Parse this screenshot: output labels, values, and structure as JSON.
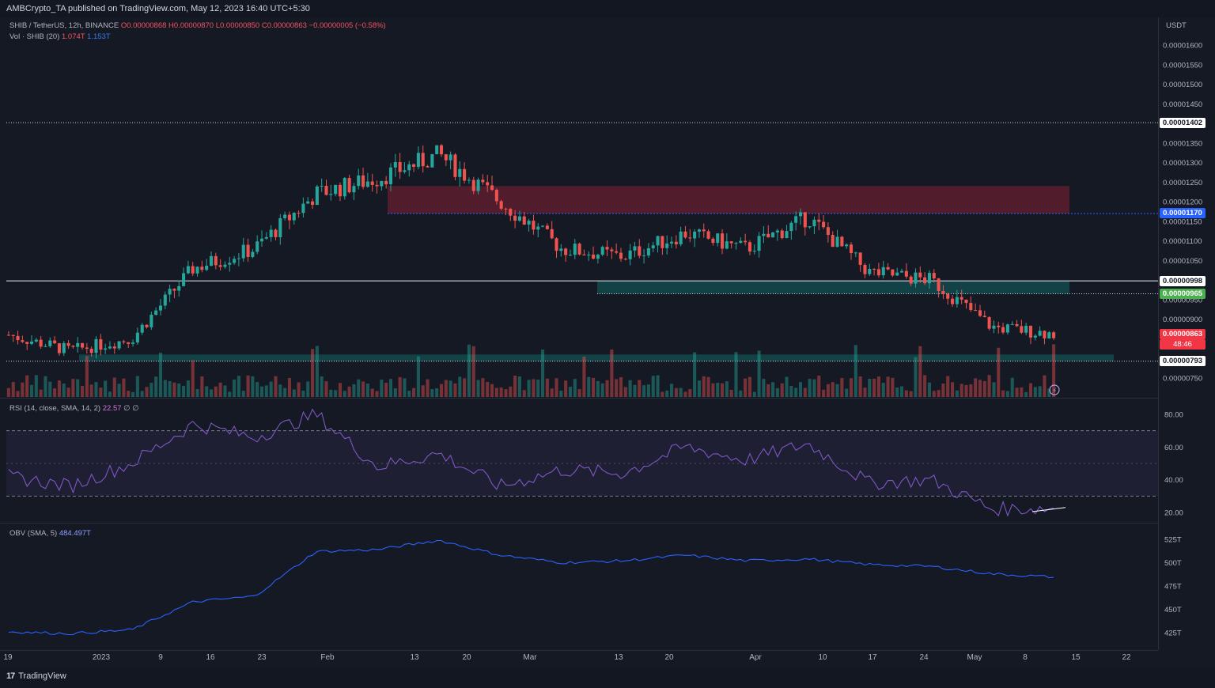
{
  "header": {
    "publisher_line": "AMBCrypto_TA published on TradingView.com, May 12, 2023 16:40 UTC+5:30"
  },
  "legend": {
    "symbol": "SHIB / TetherUS, 12h, BINANCE",
    "ohlc": "O0.00000868 H0.00000870 L0.00000850 C0.00000863 −0.00000005 (−0.58%)",
    "vol_label": "Vol · SHIB (20)",
    "vol_value": "1.074T",
    "vol_ma": "1.153T",
    "rsi_label": "RSI (14, close, SMA, 14, 2)",
    "rsi_value": "22.57",
    "rsi_extra": "∅ ∅",
    "obv_label": "OBV (SMA, 5)",
    "obv_value": "484.497T"
  },
  "axis": {
    "currency": "USDT",
    "price_ticks": [
      "0.00001600",
      "0.00001550",
      "0.00001500",
      "0.00001450",
      "0.00001400",
      "0.00001350",
      "0.00001300",
      "0.00001250",
      "0.00001200",
      "0.00001150",
      "0.00001100",
      "0.00001050",
      "0.00001000",
      "0.00000950",
      "0.00000900",
      "0.00000850",
      "0.00000800",
      "0.00000750"
    ],
    "rsi_ticks": [
      "80.00",
      "60.00",
      "40.00",
      "20.00"
    ],
    "obv_ticks": [
      "525T",
      "500T",
      "475T",
      "450T",
      "425T"
    ],
    "time_ticks": [
      "19",
      "2023",
      "9",
      "16",
      "23",
      "Feb",
      "13",
      "20",
      "Mar",
      "13",
      "20",
      "Apr",
      "10",
      "17",
      "24",
      "May",
      "8",
      "15",
      "22"
    ]
  },
  "price_tags": [
    {
      "label": "0.00001402",
      "value": 1.402e-05,
      "bg": "#ffffff",
      "fg": "#131722"
    },
    {
      "label": "0.00001170",
      "value": 1.17e-05,
      "bg": "#2962ff",
      "fg": "#ffffff"
    },
    {
      "label": "0.00000998",
      "value": 9.98e-06,
      "bg": "#ffffff",
      "fg": "#131722"
    },
    {
      "label": "0.00000965",
      "value": 9.65e-06,
      "bg": "#4caf50",
      "fg": "#ffffff"
    },
    {
      "label": "0.00000863",
      "value": 8.63e-06,
      "bg": "#f23645",
      "fg": "#ffffff"
    },
    {
      "label": "0.00000793",
      "value": 7.93e-06,
      "bg": "#ffffff",
      "fg": "#131722"
    }
  ],
  "countdown": "48:46",
  "footer": {
    "brand": "TradingView"
  },
  "colors": {
    "up": "#26a69a",
    "down": "#ef5350",
    "background": "#151924",
    "supply_zone": "#5c1f2e",
    "demand_zone": "#12474a",
    "rsi_line": "#7e57c2",
    "obv_line": "#2962ff"
  },
  "chart_data": {
    "type": "line",
    "title": "SHIB / TetherUS, 12h, BINANCE",
    "x": [
      "Dec 19",
      "Jan 2",
      "Jan 9",
      "Jan 16",
      "Jan 23",
      "Feb 1",
      "Feb 13",
      "Feb 20",
      "Mar 1",
      "Mar 13",
      "Mar 20",
      "Apr 1",
      "Apr 10",
      "Apr 17",
      "Apr 24",
      "May 1",
      "May 8",
      "May 12"
    ],
    "series": [
      {
        "name": "SHIB / TetherUS",
        "values": [
          8.6e-06,
          8.2e-06,
          8.5e-06,
          1.03e-05,
          1.08e-05,
          1.22e-05,
          1.26e-05,
          1.32e-05,
          1.2e-05,
          1.08e-05,
          1.06e-05,
          1.12e-05,
          1.08e-05,
          1.16e-05,
          1.02e-05,
          1e-05,
          8.8e-06,
          8.63e-06
        ]
      },
      {
        "name": "RSI (14, close, SMA, 14, 2)",
        "values": [
          42,
          36,
          50,
          74,
          66,
          80,
          48,
          56,
          36,
          46,
          44,
          60,
          52,
          62,
          38,
          40,
          22,
          22.57
        ]
      },
      {
        "name": "OBV (SMA, 5)",
        "values": [
          426,
          424,
          428,
          458,
          464,
          512,
          514,
          524,
          508,
          500,
          502,
          508,
          502,
          504,
          498,
          496,
          488,
          484.497
        ]
      }
    ],
    "ylim": [
      7.4e-06,
      1.62e-05
    ],
    "levels": [
      1.402e-05,
      1.17e-05,
      9.98e-06,
      9.65e-06,
      7.93e-06
    ],
    "rsi_levels": [
      70,
      30
    ],
    "grid": false,
    "legend": "top-left"
  }
}
